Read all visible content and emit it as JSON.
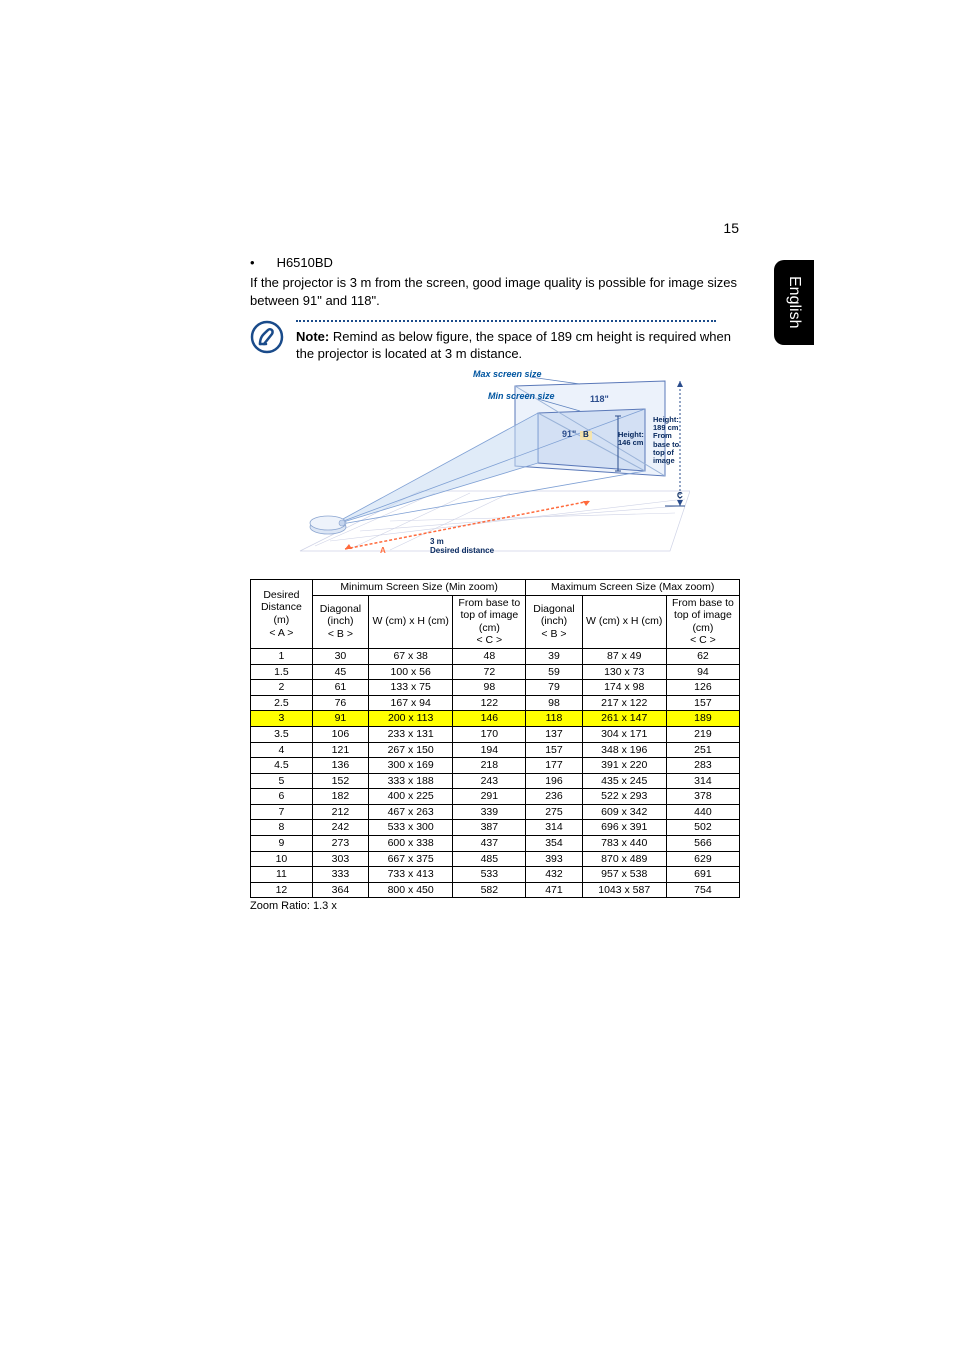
{
  "page_number": "15",
  "side_tab": "English",
  "model": "H6510BD",
  "intro": "If the projector is 3 m from the screen, good image quality is possible for image sizes between 91\" and 118\".",
  "note_label": "Note:",
  "note_body": " Remind as below figure, the space of 189 cm height is required when the projector is located at 3 m distance.",
  "diagram": {
    "max_label": "Max screen size",
    "min_label": "Min screen size",
    "max_diag": "118\"",
    "min_diag": "91\"",
    "height_left": "Height:\n146 cm",
    "height_right": "Height:\n189 cm\nFrom\nbase to\ntop of\nimage",
    "letter_a": "A",
    "letter_b": "B",
    "letter_c": "C",
    "dist_label": "3 m\nDesired distance"
  },
  "table": {
    "desired_header": "Desired Distance (m)\n< A >",
    "min_header": "Minimum Screen Size (Min zoom)",
    "max_header": "Maximum Screen Size (Max zoom)",
    "diag_header": "Diagonal (inch)\n< B >",
    "wh_header": "W (cm) x H (cm)",
    "base_header": "From base to top of image (cm)\n< C >",
    "rows": [
      {
        "d": "1",
        "b1": "30",
        "wh1": "67 x 38",
        "c1": "48",
        "b2": "39",
        "wh2": "87 x 49",
        "c2": "62"
      },
      {
        "d": "1.5",
        "b1": "45",
        "wh1": "100 x 56",
        "c1": "72",
        "b2": "59",
        "wh2": "130 x 73",
        "c2": "94"
      },
      {
        "d": "2",
        "b1": "61",
        "wh1": "133 x 75",
        "c1": "98",
        "b2": "79",
        "wh2": "174 x 98",
        "c2": "126"
      },
      {
        "d": "2.5",
        "b1": "76",
        "wh1": "167 x 94",
        "c1": "122",
        "b2": "98",
        "wh2": "217 x 122",
        "c2": "157"
      },
      {
        "d": "3",
        "b1": "91",
        "wh1": "200 x 113",
        "c1": "146",
        "b2": "118",
        "wh2": "261 x 147",
        "c2": "189",
        "hl": true
      },
      {
        "d": "3.5",
        "b1": "106",
        "wh1": "233 x 131",
        "c1": "170",
        "b2": "137",
        "wh2": "304 x 171",
        "c2": "219"
      },
      {
        "d": "4",
        "b1": "121",
        "wh1": "267 x 150",
        "c1": "194",
        "b2": "157",
        "wh2": "348 x 196",
        "c2": "251"
      },
      {
        "d": "4.5",
        "b1": "136",
        "wh1": "300 x 169",
        "c1": "218",
        "b2": "177",
        "wh2": "391 x 220",
        "c2": "283"
      },
      {
        "d": "5",
        "b1": "152",
        "wh1": "333 x 188",
        "c1": "243",
        "b2": "196",
        "wh2": "435 x 245",
        "c2": "314"
      },
      {
        "d": "6",
        "b1": "182",
        "wh1": "400 x 225",
        "c1": "291",
        "b2": "236",
        "wh2": "522 x 293",
        "c2": "378"
      },
      {
        "d": "7",
        "b1": "212",
        "wh1": "467 x 263",
        "c1": "339",
        "b2": "275",
        "wh2": "609 x 342",
        "c2": "440"
      },
      {
        "d": "8",
        "b1": "242",
        "wh1": "533 x 300",
        "c1": "387",
        "b2": "314",
        "wh2": "696 x 391",
        "c2": "502"
      },
      {
        "d": "9",
        "b1": "273",
        "wh1": "600 x 338",
        "c1": "437",
        "b2": "354",
        "wh2": "783 x 440",
        "c2": "566"
      },
      {
        "d": "10",
        "b1": "303",
        "wh1": "667 x 375",
        "c1": "485",
        "b2": "393",
        "wh2": "870 x 489",
        "c2": "629"
      },
      {
        "d": "11",
        "b1": "333",
        "wh1": "733 x 413",
        "c1": "533",
        "b2": "432",
        "wh2": "957 x 538",
        "c2": "691"
      },
      {
        "d": "12",
        "b1": "364",
        "wh1": "800 x 450",
        "c1": "582",
        "b2": "471",
        "wh2": "1043 x 587",
        "c2": "754"
      }
    ],
    "zoom_note": "Zoom Ratio: 1.3 x"
  }
}
